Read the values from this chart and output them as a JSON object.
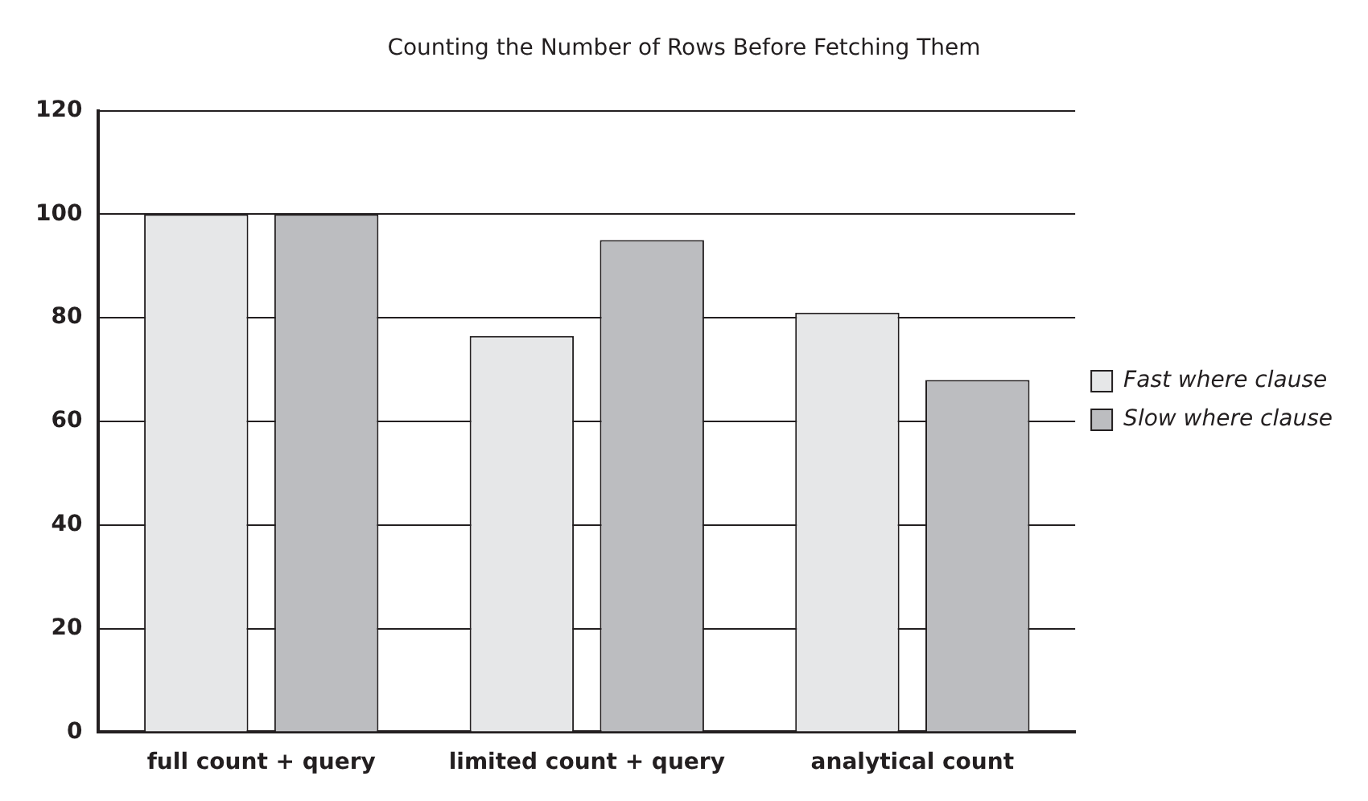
{
  "chart_data": {
    "type": "bar",
    "title": "Counting the Number of Rows Before Fetching Them",
    "categories": [
      "full count + query",
      "limited count + query",
      "analytical count"
    ],
    "series": [
      {
        "name": "Fast where clause",
        "color": "#e6e7e8",
        "values": [
          100,
          76.5,
          81
        ]
      },
      {
        "name": "Slow where clause",
        "color": "#bcbdc0",
        "values": [
          100,
          95,
          68
        ]
      }
    ],
    "ylim": [
      0,
      120
    ],
    "yticks": [
      0,
      20,
      40,
      60,
      80,
      100,
      120
    ],
    "grid": "y",
    "legend": "right"
  }
}
